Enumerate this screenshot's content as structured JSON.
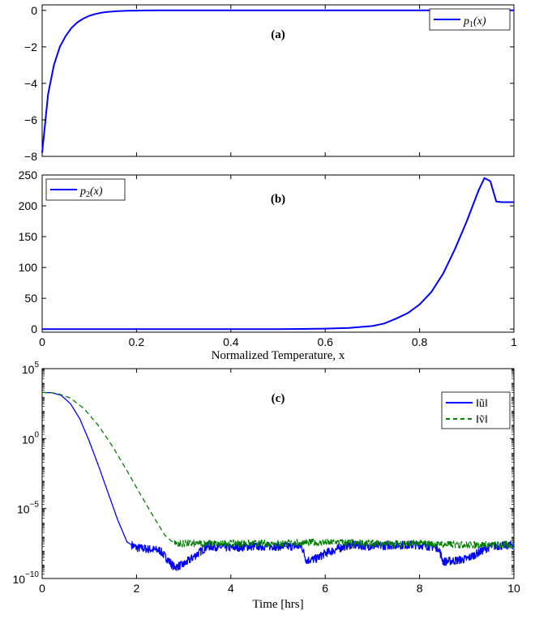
{
  "chart_data": [
    {
      "panel": "(a)",
      "type": "line",
      "title": "(a)",
      "xlabel": "",
      "ylabel": "",
      "xlim": [
        0,
        1
      ],
      "ylim": [
        -8,
        0.3
      ],
      "yticks": [
        0,
        -2,
        -4,
        -6,
        -8
      ],
      "ytick_labels": [
        "0",
        "−2",
        "−4",
        "−6",
        "−8"
      ],
      "xticks": [
        0,
        0.2,
        0.4,
        0.6,
        0.8,
        1
      ],
      "xtick_labels": [],
      "legend": {
        "position": "top-right",
        "entries": [
          "p1(x)"
        ]
      },
      "series": [
        {
          "name": "p1(x)",
          "color": "#0000ff",
          "style": "solid",
          "x": [
            0,
            0.0125,
            0.025,
            0.0375,
            0.05,
            0.0625,
            0.075,
            0.0875,
            0.1,
            0.1125,
            0.125,
            0.14,
            0.16,
            0.18,
            0.2,
            0.22,
            0.25,
            0.3,
            0.4,
            0.5,
            0.6,
            0.7,
            0.8,
            0.9,
            1.0
          ],
          "y": [
            -7.8,
            -4.6,
            -3.0,
            -2.0,
            -1.4,
            -0.95,
            -0.65,
            -0.45,
            -0.3,
            -0.2,
            -0.13,
            -0.08,
            -0.045,
            -0.025,
            -0.014,
            -0.008,
            -0.004,
            -0.002,
            0,
            0,
            0,
            0,
            0,
            0,
            0
          ]
        }
      ]
    },
    {
      "panel": "(b)",
      "type": "line",
      "title": "(b)",
      "xlabel": "Normalized Temperature, x",
      "ylabel": "",
      "xlim": [
        0,
        1
      ],
      "ylim": [
        -5,
        250
      ],
      "yticks": [
        0,
        50,
        100,
        150,
        200,
        250
      ],
      "ytick_labels": [
        "0",
        "50",
        "100",
        "150",
        "200",
        "250"
      ],
      "xticks": [
        0,
        0.2,
        0.4,
        0.6,
        0.8,
        1
      ],
      "xtick_labels": [
        "0",
        "0.2",
        "0.4",
        "0.6",
        "0.8",
        "1"
      ],
      "legend": {
        "position": "top-left",
        "entries": [
          "p2(x)"
        ]
      },
      "series": [
        {
          "name": "p2(x)",
          "color": "#0000ff",
          "style": "solid",
          "x": [
            0,
            0.1,
            0.2,
            0.3,
            0.4,
            0.5,
            0.55,
            0.6,
            0.65,
            0.7,
            0.725,
            0.75,
            0.775,
            0.8,
            0.825,
            0.85,
            0.875,
            0.9,
            0.925,
            0.9375,
            0.95,
            0.9625,
            0.975,
            1.0
          ],
          "y": [
            0,
            0,
            0,
            0,
            0,
            0,
            0.3,
            0.8,
            2,
            5,
            9,
            17,
            26,
            40,
            60,
            90,
            130,
            175,
            225,
            245,
            240,
            207,
            206,
            206
          ]
        }
      ]
    },
    {
      "panel": "(c)",
      "type": "line",
      "title": "(c)",
      "xlabel": "Time [hrs]",
      "ylabel": "",
      "xlim": [
        0,
        10
      ],
      "ylim_log10": [
        -10,
        5
      ],
      "yscale": "log",
      "yticks_log10": [
        5,
        0,
        -5,
        -10
      ],
      "xticks": [
        0,
        2,
        4,
        6,
        8,
        10
      ],
      "xtick_labels": [
        "0",
        "2",
        "4",
        "6",
        "8",
        "10"
      ],
      "legend": {
        "position": "top-right",
        "entries": [
          "‖ũ‖",
          "‖ṽ‖"
        ]
      },
      "series": [
        {
          "name": "‖ũ‖",
          "color": "#0000ff",
          "style": "solid",
          "x": [
            0,
            0.2,
            0.4,
            0.6,
            0.8,
            1.0,
            1.2,
            1.4,
            1.6,
            1.8,
            2.0,
            2.5,
            2.8,
            3.0,
            3.5,
            4.0,
            4.5,
            5.0,
            5.5,
            5.6,
            5.8,
            6.0,
            6.5,
            7.0,
            7.5,
            8.0,
            8.4,
            8.5,
            8.8,
            9.0,
            9.5,
            10.0
          ],
          "y_log10": [
            3.3,
            3.28,
            3.1,
            2.5,
            1.4,
            -0.2,
            -2.0,
            -3.9,
            -5.8,
            -7.4,
            -7.8,
            -8.0,
            -9.2,
            -9.0,
            -7.7,
            -7.8,
            -7.7,
            -7.7,
            -7.7,
            -8.7,
            -8.6,
            -8.2,
            -7.6,
            -7.7,
            -7.6,
            -7.6,
            -7.8,
            -8.8,
            -8.7,
            -8.6,
            -7.7,
            -7.6
          ],
          "noise_log10": 0.3
        },
        {
          "name": "‖ṽ‖",
          "color": "#008000",
          "style": "dashed",
          "x": [
            0,
            0.3,
            0.6,
            0.9,
            1.2,
            1.5,
            1.8,
            2.1,
            2.4,
            2.6,
            2.8,
            3.0,
            4.0,
            5.0,
            6.0,
            7.0,
            8.0,
            9.0,
            10.0
          ],
          "y_log10": [
            3.3,
            3.25,
            2.9,
            2.1,
            0.9,
            -0.6,
            -2.3,
            -4.1,
            -5.8,
            -6.9,
            -7.5,
            -7.5,
            -7.5,
            -7.5,
            -7.4,
            -7.5,
            -7.5,
            -7.6,
            -7.6
          ],
          "noise_log10": 0.25,
          "noise_from_x": 2.8
        }
      ]
    }
  ]
}
